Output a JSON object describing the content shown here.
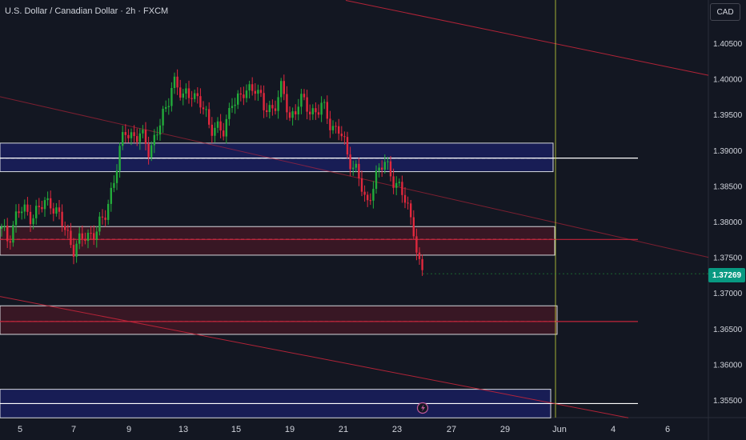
{
  "chart_title": "U.S. Dollar / Canadian Dollar · 2h · FXCM",
  "currency_button": "CAD",
  "last_price": "1.37269",
  "colors": {
    "background": "#131722",
    "up": "#22ab3a",
    "down": "#e0283d",
    "blue_zone": "#1a1f5e",
    "red_zone": "#3f1724",
    "trendline": "#c2253a",
    "price_tag": "#089981",
    "vertical_line": "#c8d63a"
  },
  "chart_data": {
    "type": "candlestick",
    "title": "U.S. Dollar / Canadian Dollar · 2h · FXCM",
    "ylim": [
      1.3525,
      1.411
    ],
    "y_ticks": [
      "1.40500",
      "1.40000",
      "1.39500",
      "1.39000",
      "1.38500",
      "1.38000",
      "1.37500",
      "1.37000",
      "1.36500",
      "1.36000",
      "1.35500"
    ],
    "x_ticks": [
      "5",
      "7",
      "9",
      "13",
      "15",
      "19",
      "21",
      "23",
      "27",
      "29",
      "Jun",
      "4",
      "6"
    ],
    "anchors": [
      [
        0,
        1.379
      ],
      [
        10,
        1.3775
      ],
      [
        22,
        1.3815
      ],
      [
        40,
        1.381
      ],
      [
        64,
        1.383
      ],
      [
        80,
        1.379
      ],
      [
        92,
        1.3765
      ],
      [
        110,
        1.378
      ],
      [
        130,
        1.38
      ],
      [
        140,
        1.385
      ],
      [
        148,
        1.389
      ],
      [
        156,
        1.3925
      ],
      [
        175,
        1.392
      ],
      [
        186,
        1.39
      ],
      [
        195,
        1.3925
      ],
      [
        208,
        1.3955
      ],
      [
        216,
        1.4005
      ],
      [
        228,
        1.397
      ],
      [
        240,
        1.3985
      ],
      [
        252,
        1.396
      ],
      [
        262,
        1.3935
      ],
      [
        270,
        1.3935
      ],
      [
        280,
        1.392
      ],
      [
        290,
        1.3975
      ],
      [
        300,
        1.397
      ],
      [
        318,
        1.3995
      ],
      [
        330,
        1.3955
      ],
      [
        340,
        1.396
      ],
      [
        352,
        1.3985
      ],
      [
        362,
        1.3945
      ],
      [
        374,
        1.397
      ],
      [
        388,
        1.3955
      ],
      [
        402,
        1.396
      ],
      [
        414,
        1.3935
      ],
      [
        424,
        1.393
      ],
      [
        434,
        1.389
      ],
      [
        446,
        1.3875
      ],
      [
        458,
        1.3815
      ],
      [
        468,
        1.3865
      ],
      [
        480,
        1.388
      ],
      [
        490,
        1.3865
      ],
      [
        500,
        1.3845
      ],
      [
        510,
        1.3815
      ],
      [
        518,
        1.379
      ],
      [
        522,
        1.3745
      ],
      [
        527,
        1.3727
      ]
    ],
    "zones": [
      {
        "kind": "demand",
        "top": 1.391,
        "bottom": 1.387,
        "mid": 1.3889,
        "end_label": "Jun"
      },
      {
        "kind": "supply",
        "top": 1.3793,
        "bottom": 1.3753,
        "mid": 1.3775,
        "end_label": "Jun"
      },
      {
        "kind": "supply",
        "top": 1.3682,
        "bottom": 1.3642,
        "mid": 1.366,
        "end_label": "Jun"
      },
      {
        "kind": "demand",
        "top": 1.3565,
        "bottom": 1.3525,
        "mid": 1.3545,
        "end_label": "Jun"
      }
    ],
    "levels": [
      1.3889,
      1.3775,
      1.366,
      1.3545
    ],
    "trendlines": [
      {
        "from": [
          432,
          1.411
        ],
        "to": [
          885,
          1.4005
        ]
      },
      {
        "from": [
          0,
          1.3975
        ],
        "to": [
          885,
          1.375
        ]
      },
      {
        "from": [
          0,
          1.3695
        ],
        "to": [
          785,
          1.3525
        ]
      }
    ],
    "vertical_marker": "Jun"
  }
}
